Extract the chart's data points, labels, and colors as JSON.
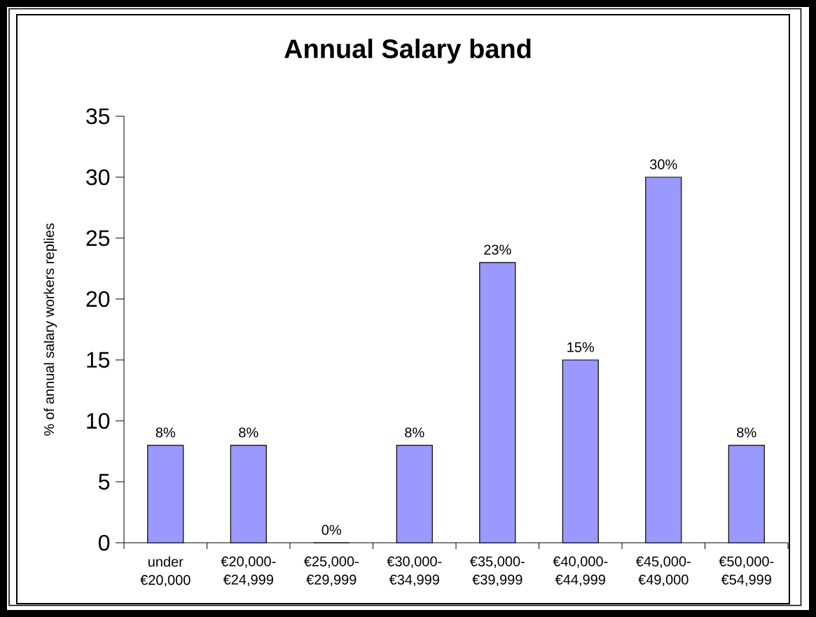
{
  "chart_data": {
    "type": "bar",
    "title": "Annual Salary band",
    "ylabel": "% of annual salary workers replies",
    "categories": [
      "under €20,000",
      "€20,000-€24,999",
      "€25,000-€29,999",
      "€30,000-€34,999",
      "€35,000-€39,999",
      "€40,000-€44,999",
      "€45,000-€49,000",
      "€50,000-€54,999"
    ],
    "values": [
      8,
      8,
      0,
      8,
      23,
      15,
      30,
      8
    ],
    "value_labels": [
      "8%",
      "8%",
      "0%",
      "8%",
      "23%",
      "15%",
      "30%",
      "8%"
    ],
    "color": "#9999ff",
    "ylim": [
      0,
      35
    ],
    "yticks": [
      0,
      5,
      10,
      15,
      20,
      25,
      30,
      35
    ]
  }
}
